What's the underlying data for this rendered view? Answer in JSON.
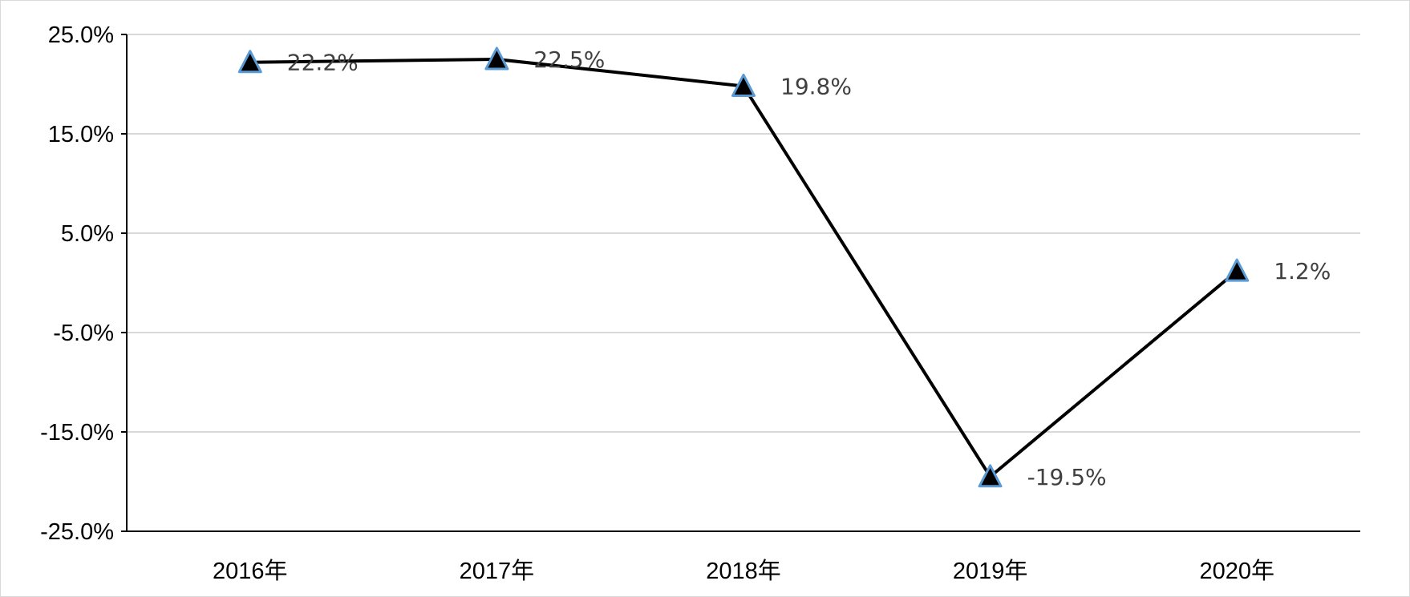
{
  "chart_data": {
    "type": "line",
    "title": "",
    "xlabel": "",
    "ylabel": "",
    "categories": [
      "2016年",
      "2017年",
      "2018年",
      "2019年",
      "2020年"
    ],
    "series": [
      {
        "values": [
          22.2,
          22.5,
          19.8,
          -19.5,
          1.2
        ],
        "labels": [
          "22.2%",
          "22.5%",
          "19.8%",
          "-19.5%",
          "1.2%"
        ],
        "line_color": "#000000",
        "marker": "triangle",
        "marker_fill": "#000000",
        "marker_edge": "#5b9bd5"
      }
    ],
    "ylim": [
      -25,
      25
    ],
    "yticks": [
      25,
      15,
      5,
      -5,
      -15,
      -25
    ],
    "ytick_labels": [
      "25.0%",
      "15.0%",
      "5.0%",
      "-5.0%",
      "-15.0%",
      "-25.0%"
    ],
    "grid": true,
    "grid_color": "#d9d9d9",
    "legend": "none"
  }
}
